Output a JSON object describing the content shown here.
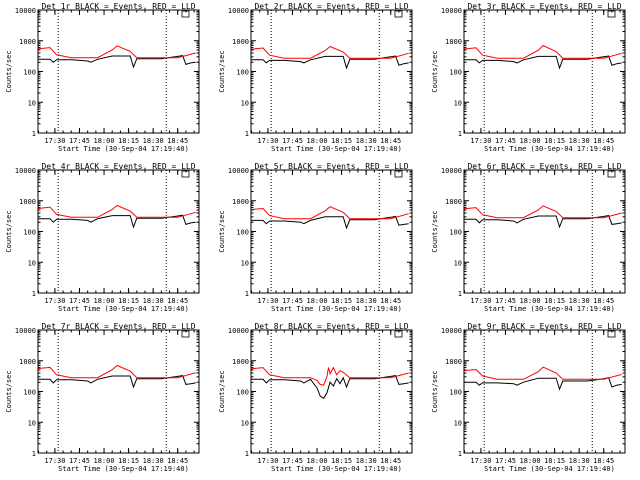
{
  "chart_data": [
    {
      "type": "line",
      "title": "Det 1r BLACK = Events, RED = LLD",
      "xlabel": "Start Time (30-Sep-04 17:19:40)",
      "ylabel": "Counts/sec",
      "yscale": "log",
      "ylim": [
        1,
        10000
      ],
      "x_ticks": [
        "17:30",
        "17:45",
        "18:00",
        "18:15",
        "18:30",
        "18:45"
      ],
      "y_ticks": [
        "1",
        "10",
        "100",
        "1000",
        "10000"
      ],
      "series": [
        {
          "name": "Events",
          "color": "#000000",
          "x": [
            "17:20",
            "17:27",
            "17:29",
            "17:31",
            "17:40",
            "17:50",
            "17:52",
            "17:56",
            "18:05",
            "18:16",
            "18:18",
            "18:20",
            "18:35",
            "18:45",
            "18:48",
            "18:50",
            "18:53",
            "18:56"
          ],
          "y": [
            250,
            250,
            200,
            240,
            240,
            220,
            200,
            250,
            320,
            320,
            140,
            260,
            260,
            310,
            330,
            170,
            190,
            200
          ]
        },
        {
          "name": "LLD",
          "color": "#ff0000",
          "x": [
            "17:20",
            "17:27",
            "17:31",
            "17:40",
            "17:50",
            "17:56",
            "18:05",
            "18:08",
            "18:16",
            "18:20",
            "18:35",
            "18:45",
            "18:56"
          ],
          "y": [
            550,
            600,
            350,
            280,
            280,
            280,
            500,
            680,
            450,
            280,
            280,
            280,
            400
          ]
        }
      ],
      "vlines": [
        "17:32",
        "18:38"
      ]
    },
    {
      "type": "line",
      "title": "Det 2r BLACK = Events, RED = LLD",
      "xlabel": "Start Time (30-Sep-04 17:19:40)",
      "ylabel": "Counts/sec",
      "yscale": "log",
      "ylim": [
        1,
        10000
      ],
      "x_ticks": [
        "17:30",
        "17:45",
        "18:00",
        "18:15",
        "18:30",
        "18:45"
      ],
      "y_ticks": [
        "1",
        "10",
        "100",
        "1000",
        "10000"
      ],
      "series": [
        {
          "name": "Events",
          "color": "#000000",
          "x": [
            "17:20",
            "17:27",
            "17:29",
            "17:31",
            "17:40",
            "17:50",
            "17:52",
            "17:56",
            "18:05",
            "18:16",
            "18:18",
            "18:20",
            "18:35",
            "18:45",
            "18:48",
            "18:50",
            "18:53",
            "18:56"
          ],
          "y": [
            240,
            240,
            190,
            230,
            230,
            210,
            190,
            240,
            310,
            310,
            130,
            250,
            250,
            300,
            320,
            160,
            180,
            190
          ]
        },
        {
          "name": "LLD",
          "color": "#ff0000",
          "x": [
            "17:20",
            "17:27",
            "17:31",
            "17:40",
            "17:50",
            "17:56",
            "18:05",
            "18:08",
            "18:16",
            "18:20",
            "18:35",
            "18:45",
            "18:56"
          ],
          "y": [
            530,
            580,
            340,
            270,
            270,
            270,
            480,
            650,
            430,
            270,
            270,
            270,
            390
          ]
        }
      ],
      "vlines": [
        "17:32",
        "18:38"
      ]
    },
    {
      "type": "line",
      "title": "Det 3r BLACK = Events, RED = LLD",
      "xlabel": "Start Time (30-Sep-04 17:19:40)",
      "ylabel": "Counts/sec",
      "yscale": "log",
      "ylim": [
        1,
        10000
      ],
      "x_ticks": [
        "17:30",
        "17:45",
        "18:00",
        "18:15",
        "18:30",
        "18:45"
      ],
      "y_ticks": [
        "1",
        "10",
        "100",
        "1000",
        "10000"
      ],
      "series": [
        {
          "name": "Events",
          "color": "#000000",
          "x": [
            "17:20",
            "17:27",
            "17:29",
            "17:31",
            "17:40",
            "17:50",
            "17:52",
            "17:56",
            "18:05",
            "18:16",
            "18:18",
            "18:20",
            "18:35",
            "18:45",
            "18:48",
            "18:50",
            "18:53",
            "18:56"
          ],
          "y": [
            240,
            240,
            190,
            230,
            230,
            210,
            190,
            240,
            310,
            310,
            130,
            250,
            250,
            300,
            320,
            160,
            180,
            190
          ]
        },
        {
          "name": "LLD",
          "color": "#ff0000",
          "x": [
            "17:20",
            "17:27",
            "17:31",
            "17:40",
            "17:50",
            "17:56",
            "18:05",
            "18:08",
            "18:16",
            "18:20",
            "18:35",
            "18:45",
            "18:56"
          ],
          "y": [
            540,
            590,
            340,
            270,
            270,
            270,
            490,
            700,
            440,
            270,
            270,
            270,
            390
          ]
        }
      ],
      "vlines": [
        "17:32",
        "18:38"
      ]
    },
    {
      "type": "line",
      "title": "Det 4r BLACK = Events, RED = LLD",
      "xlabel": "Start Time (30-Sep-04 17:19:40)",
      "ylabel": "Counts/sec",
      "yscale": "log",
      "ylim": [
        1,
        10000
      ],
      "x_ticks": [
        "17:30",
        "17:45",
        "18:00",
        "18:15",
        "18:30",
        "18:45"
      ],
      "y_ticks": [
        "1",
        "10",
        "100",
        "1000",
        "10000"
      ],
      "series": [
        {
          "name": "Events",
          "color": "#000000",
          "x": [
            "17:20",
            "17:27",
            "17:29",
            "17:31",
            "17:40",
            "17:50",
            "17:52",
            "17:56",
            "18:05",
            "18:16",
            "18:18",
            "18:20",
            "18:35",
            "18:45",
            "18:48",
            "18:50",
            "18:53",
            "18:56"
          ],
          "y": [
            260,
            260,
            200,
            250,
            250,
            230,
            200,
            260,
            330,
            330,
            140,
            270,
            270,
            320,
            340,
            170,
            190,
            200
          ]
        },
        {
          "name": "LLD",
          "color": "#ff0000",
          "x": [
            "17:20",
            "17:27",
            "17:31",
            "17:40",
            "17:50",
            "17:56",
            "18:05",
            "18:08",
            "18:16",
            "18:20",
            "18:35",
            "18:45",
            "18:56"
          ],
          "y": [
            560,
            620,
            360,
            290,
            290,
            290,
            520,
            700,
            460,
            290,
            290,
            290,
            420
          ]
        }
      ],
      "vlines": [
        "17:32",
        "18:38"
      ]
    },
    {
      "type": "line",
      "title": "Det 5r BLACK = Events, RED = LLD",
      "xlabel": "Start Time (30-Sep-04 17:19:40)",
      "ylabel": "Counts/sec",
      "yscale": "log",
      "ylim": [
        1,
        10000
      ],
      "x_ticks": [
        "17:30",
        "17:45",
        "18:00",
        "18:15",
        "18:30",
        "18:45"
      ],
      "y_ticks": [
        "1",
        "10",
        "100",
        "1000",
        "10000"
      ],
      "series": [
        {
          "name": "Events",
          "color": "#000000",
          "x": [
            "17:20",
            "17:27",
            "17:29",
            "17:31",
            "17:40",
            "17:50",
            "17:52",
            "17:56",
            "18:05",
            "18:16",
            "18:18",
            "18:20",
            "18:35",
            "18:45",
            "18:48",
            "18:50",
            "18:53",
            "18:56"
          ],
          "y": [
            230,
            230,
            180,
            220,
            220,
            200,
            180,
            230,
            300,
            300,
            130,
            240,
            240,
            290,
            310,
            160,
            170,
            180
          ]
        },
        {
          "name": "LLD",
          "color": "#ff0000",
          "x": [
            "17:20",
            "17:27",
            "17:31",
            "17:40",
            "17:50",
            "17:56",
            "18:05",
            "18:08",
            "18:16",
            "18:20",
            "18:35",
            "18:45",
            "18:56"
          ],
          "y": [
            520,
            560,
            330,
            260,
            260,
            260,
            470,
            640,
            420,
            260,
            260,
            260,
            380
          ]
        }
      ],
      "vlines": [
        "17:32",
        "18:38"
      ]
    },
    {
      "type": "line",
      "title": "Det 6r BLACK = Events, RED = LLD",
      "xlabel": "Start Time (30-Sep-04 17:19:40)",
      "ylabel": "Counts/sec",
      "yscale": "log",
      "ylim": [
        1,
        10000
      ],
      "x_ticks": [
        "17:30",
        "17:45",
        "18:00",
        "18:15",
        "18:30",
        "18:45"
      ],
      "y_ticks": [
        "1",
        "10",
        "100",
        "1000",
        "10000"
      ],
      "series": [
        {
          "name": "Events",
          "color": "#000000",
          "x": [
            "17:20",
            "17:27",
            "17:29",
            "17:31",
            "17:40",
            "17:50",
            "17:52",
            "17:56",
            "18:05",
            "18:16",
            "18:18",
            "18:20",
            "18:35",
            "18:45",
            "18:48",
            "18:50",
            "18:53",
            "18:56"
          ],
          "y": [
            250,
            250,
            190,
            240,
            240,
            220,
            190,
            250,
            320,
            320,
            140,
            260,
            260,
            310,
            330,
            170,
            180,
            190
          ]
        },
        {
          "name": "LLD",
          "color": "#ff0000",
          "x": [
            "17:20",
            "17:27",
            "17:31",
            "17:40",
            "17:50",
            "17:56",
            "18:05",
            "18:08",
            "18:16",
            "18:20",
            "18:35",
            "18:45",
            "18:56"
          ],
          "y": [
            550,
            600,
            350,
            280,
            280,
            280,
            500,
            680,
            450,
            280,
            280,
            280,
            400
          ]
        }
      ],
      "vlines": [
        "17:32",
        "18:38"
      ]
    },
    {
      "type": "line",
      "title": "Det 7r BLACK = Events, RED = LLD",
      "xlabel": "Start Time (30-Sep-04 17:19:40)",
      "ylabel": "Counts/sec",
      "yscale": "log",
      "ylim": [
        1,
        10000
      ],
      "x_ticks": [
        "17:30",
        "17:45",
        "18:00",
        "18:15",
        "18:30",
        "18:45"
      ],
      "y_ticks": [
        "1",
        "10",
        "100",
        "1000",
        "10000"
      ],
      "series": [
        {
          "name": "Events",
          "color": "#000000",
          "x": [
            "17:20",
            "17:27",
            "17:29",
            "17:31",
            "17:40",
            "17:50",
            "17:52",
            "17:56",
            "18:05",
            "18:16",
            "18:18",
            "18:20",
            "18:35",
            "18:45",
            "18:48",
            "18:50",
            "18:53",
            "18:56"
          ],
          "y": [
            250,
            250,
            190,
            240,
            240,
            220,
            190,
            250,
            320,
            320,
            140,
            260,
            260,
            310,
            330,
            170,
            180,
            190
          ]
        },
        {
          "name": "LLD",
          "color": "#ff0000",
          "x": [
            "17:20",
            "17:27",
            "17:31",
            "17:40",
            "17:50",
            "17:56",
            "18:05",
            "18:08",
            "18:16",
            "18:20",
            "18:35",
            "18:45",
            "18:56"
          ],
          "y": [
            560,
            610,
            350,
            280,
            280,
            280,
            510,
            700,
            460,
            280,
            280,
            280,
            410
          ]
        }
      ],
      "vlines": [
        "17:32",
        "18:38"
      ]
    },
    {
      "type": "line",
      "title": "Det 8r BLACK = Events, RED = LLD",
      "xlabel": "Start Time (30-Sep-04 17:19:40)",
      "ylabel": "Counts/sec",
      "yscale": "log",
      "ylim": [
        1,
        10000
      ],
      "x_ticks": [
        "17:30",
        "17:45",
        "18:00",
        "18:15",
        "18:30",
        "18:45"
      ],
      "y_ticks": [
        "1",
        "10",
        "100",
        "1000",
        "10000"
      ],
      "series": [
        {
          "name": "Events",
          "color": "#000000",
          "x": [
            "17:20",
            "17:27",
            "17:29",
            "17:31",
            "17:40",
            "17:50",
            "17:52",
            "17:56",
            "18:00",
            "18:02",
            "18:04",
            "18:06",
            "18:08",
            "18:10",
            "18:12",
            "18:14",
            "18:16",
            "18:18",
            "18:20",
            "18:35",
            "18:45",
            "18:48",
            "18:50",
            "18:53",
            "18:56"
          ],
          "y": [
            250,
            250,
            190,
            240,
            240,
            220,
            190,
            250,
            130,
            70,
            60,
            90,
            200,
            150,
            260,
            180,
            280,
            140,
            260,
            260,
            310,
            330,
            170,
            180,
            190
          ]
        },
        {
          "name": "LLD",
          "color": "#ff0000",
          "x": [
            "17:20",
            "17:27",
            "17:31",
            "17:40",
            "17:50",
            "17:56",
            "18:00",
            "18:02",
            "18:04",
            "18:06",
            "18:07",
            "18:08",
            "18:10",
            "18:12",
            "18:14",
            "18:16",
            "18:20",
            "18:35",
            "18:45",
            "18:56"
          ],
          "y": [
            550,
            600,
            350,
            280,
            280,
            280,
            230,
            170,
            160,
            300,
            600,
            380,
            600,
            350,
            480,
            420,
            280,
            280,
            280,
            400
          ]
        }
      ],
      "vlines": [
        "17:32",
        "18:38"
      ]
    },
    {
      "type": "line",
      "title": "Det 9r BLACK = Events, RED = LLD",
      "xlabel": "Start Time (30-Sep-04 17:19:40)",
      "ylabel": "Counts/sec",
      "yscale": "log",
      "ylim": [
        1,
        10000
      ],
      "x_ticks": [
        "17:30",
        "17:45",
        "18:00",
        "18:15",
        "18:30",
        "18:45"
      ],
      "y_ticks": [
        "1",
        "10",
        "100",
        "1000",
        "10000"
      ],
      "series": [
        {
          "name": "Events",
          "color": "#000000",
          "x": [
            "17:20",
            "17:27",
            "17:29",
            "17:31",
            "17:40",
            "17:50",
            "17:52",
            "17:56",
            "18:05",
            "18:16",
            "18:18",
            "18:20",
            "18:35",
            "18:45",
            "18:48",
            "18:50",
            "18:53",
            "18:56"
          ],
          "y": [
            200,
            200,
            160,
            190,
            190,
            180,
            160,
            200,
            270,
            270,
            120,
            220,
            220,
            260,
            280,
            140,
            160,
            170
          ]
        },
        {
          "name": "LLD",
          "color": "#ff0000",
          "x": [
            "17:20",
            "17:27",
            "17:31",
            "17:40",
            "17:50",
            "17:56",
            "18:05",
            "18:08",
            "18:16",
            "18:20",
            "18:35",
            "18:45",
            "18:56"
          ],
          "y": [
            480,
            520,
            320,
            250,
            250,
            250,
            440,
            620,
            400,
            250,
            250,
            250,
            360
          ]
        }
      ],
      "vlines": [
        "17:32",
        "18:38"
      ]
    }
  ]
}
